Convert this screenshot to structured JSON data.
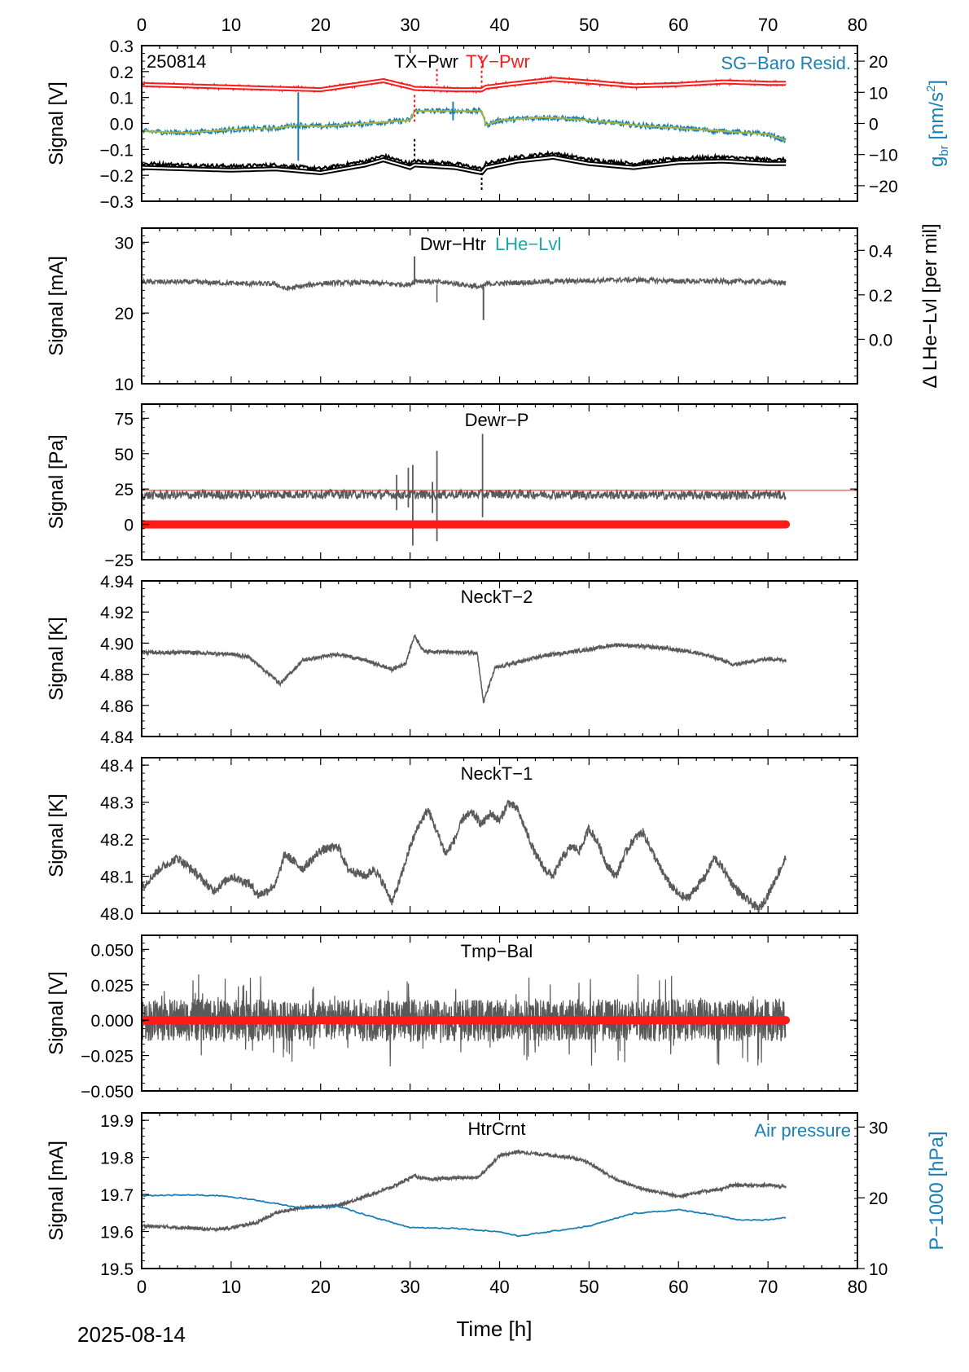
{
  "chart_data": {
    "type": "line",
    "date_label": "2025-08-14",
    "xlabel": "Time [h]",
    "xlim": [
      0,
      80
    ],
    "x_ticks": [
      "0",
      "10",
      "20",
      "30",
      "40",
      "50",
      "60",
      "70",
      "80"
    ],
    "colors": {
      "gray": "#5a5a5a",
      "red": "#ff1a1a",
      "blue": "#1a7fb5",
      "black": "#000000",
      "teal": "#1aa6a6",
      "olive": "#a8b23a"
    },
    "panels": [
      {
        "title": "TX−Pwr",
        "title2": "TY−Pwr",
        "corner_label": "250814",
        "right_label": "SG−Baro Resid.",
        "ylabel": "Signal [V]",
        "ylim": [
          -0.3,
          0.3
        ],
        "y_ticks": [
          "−0.3",
          "−0.2",
          "−0.1",
          "0.0",
          "0.1",
          "0.2",
          "0.3"
        ],
        "y2label": "g",
        "y2label_sub": "br",
        "y2label_unit": "[nm/s",
        "y2label_sup": "2",
        "y2label_end": "]",
        "y2lim": [
          -25,
          25
        ],
        "y2_ticks": [
          "−20",
          "−10",
          "0",
          "10",
          "20"
        ],
        "series": [
          {
            "x": [
              0,
              5,
              10,
              15,
              20,
              25,
              27,
              30,
              30.5,
              35,
              38,
              38.5,
              42,
              46,
              50,
              55,
              60,
              65,
              70,
              72
            ],
            "y": [
              0.15,
              0.145,
              0.14,
              0.135,
              0.13,
              0.155,
              0.165,
              0.14,
              0.135,
              0.13,
              0.13,
              0.14,
              0.155,
              0.17,
              0.16,
              0.145,
              0.15,
              0.16,
              0.155,
              0.155
            ]
          },
          {
            "x": [
              0,
              5,
              10,
              15,
              20,
              25,
              27,
              30,
              30.5,
              35,
              38,
              38.5,
              42,
              46,
              50,
              55,
              60,
              65,
              70,
              72
            ],
            "y": [
              -0.155,
              -0.16,
              -0.165,
              -0.16,
              -0.175,
              -0.145,
              -0.125,
              -0.155,
              -0.145,
              -0.155,
              -0.175,
              -0.155,
              -0.13,
              -0.115,
              -0.14,
              -0.155,
              -0.135,
              -0.13,
              -0.14,
              -0.14
            ]
          },
          {
            "x": [
              0,
              5,
              10,
              15,
              17.5,
              20,
              25,
              30,
              30.5,
              35,
              38,
              38.5,
              40,
              45,
              50,
              55,
              60,
              65,
              70,
              72
            ],
            "y": [
              -2.5,
              -3,
              -2,
              -1.5,
              -0.5,
              -1,
              0,
              1,
              4,
              4,
              4,
              -0.5,
              1,
              2,
              1,
              -0.5,
              -1.5,
              -2.5,
              -3.5,
              -5.5
            ]
          }
        ]
      },
      {
        "title": "Dwr−Htr",
        "title2": "LHe−Lvl",
        "ylabel": "Signal [mA]",
        "ylim": [
          10,
          32
        ],
        "y_ticks": [
          "10",
          "20",
          "30"
        ],
        "y2label": "Δ LHe−Lvl [per mil]",
        "y2lim": [
          -0.2,
          0.5
        ],
        "y2_ticks": [
          "0.0",
          "0.2",
          "0.4"
        ],
        "series": [
          {
            "x": [
              0,
              5,
              10,
              15,
              16,
              20,
              25,
              30,
              30.5,
              35,
              38,
              38.5,
              42,
              50,
              55,
              60,
              65,
              70,
              72
            ],
            "y": [
              24.4,
              24.4,
              24.2,
              24.1,
              23.4,
              24.2,
              24.3,
              24.0,
              24.6,
              24.2,
              23.6,
              24.1,
              24.3,
              24.6,
              24.7,
              24.5,
              24.5,
              24.4,
              24.2
            ]
          }
        ]
      },
      {
        "title": "Dewr−P",
        "ylabel": "Signal [Pa]",
        "ylim": [
          -25,
          85
        ],
        "y_ticks": [
          "−25",
          "0",
          "25",
          "50",
          "75"
        ],
        "ref_line": 24,
        "series": [
          {
            "x": [
              0,
              10,
              20,
              30,
              40,
              50,
              60,
              70,
              72
            ],
            "y": [
              20.5,
              21,
              21.5,
              21,
              21.5,
              21,
              20.5,
              21,
              20.5
            ]
          },
          {
            "x": [
              0,
              72
            ],
            "y": [
              0,
              0
            ]
          }
        ]
      },
      {
        "title": "NeckT−2",
        "ylabel": "Signal [K]",
        "ylim": [
          4.84,
          4.94
        ],
        "y_ticks": [
          "4.84",
          "4.86",
          "4.88",
          "4.90",
          "4.92",
          "4.94"
        ],
        "series": [
          {
            "x": [
              0,
              5,
              10,
              12,
              15.5,
              18,
              22,
              25,
              28,
              29.5,
              30.5,
              31.5,
              35,
              37.5,
              38.2,
              39.5,
              45,
              50,
              53,
              58,
              62,
              65,
              66,
              70,
              72
            ],
            "y": [
              4.894,
              4.894,
              4.893,
              4.891,
              4.874,
              4.889,
              4.893,
              4.889,
              4.883,
              4.887,
              4.905,
              4.895,
              4.894,
              4.894,
              4.862,
              4.884,
              4.892,
              4.896,
              4.899,
              4.897,
              4.894,
              4.889,
              4.886,
              4.89,
              4.889
            ]
          }
        ]
      },
      {
        "title": "NeckT−1",
        "ylabel": "Signal [K]",
        "ylim": [
          48.0,
          48.42
        ],
        "y_ticks": [
          "48.0",
          "48.1",
          "48.2",
          "48.3",
          "48.4"
        ],
        "series": [
          {
            "x": [
              0,
              2,
              4,
              6,
              8,
              10,
              12,
              13,
              14,
              15,
              16,
              18,
              20,
              22,
              23,
              25,
              26,
              27,
              28,
              29,
              30,
              31,
              32,
              33,
              34,
              35,
              36,
              37,
              38,
              39,
              40,
              41,
              42,
              43,
              44,
              45,
              46,
              47,
              48,
              49,
              50,
              51,
              52,
              53,
              54,
              55,
              56,
              57,
              58,
              59,
              60,
              61,
              62,
              63,
              64,
              65,
              66,
              67,
              68,
              69,
              70,
              71,
              72
            ],
            "y": [
              48.07,
              48.12,
              48.15,
              48.11,
              48.06,
              48.1,
              48.08,
              48.05,
              48.06,
              48.08,
              48.16,
              48.12,
              48.17,
              48.18,
              48.12,
              48.1,
              48.12,
              48.08,
              48.03,
              48.1,
              48.18,
              48.24,
              48.28,
              48.22,
              48.16,
              48.2,
              48.26,
              48.27,
              48.24,
              48.27,
              48.25,
              48.3,
              48.28,
              48.22,
              48.16,
              48.12,
              48.1,
              48.15,
              48.18,
              48.17,
              48.23,
              48.19,
              48.13,
              48.1,
              48.16,
              48.2,
              48.22,
              48.17,
              48.12,
              48.08,
              48.05,
              48.04,
              48.07,
              48.1,
              48.15,
              48.12,
              48.08,
              48.05,
              48.03,
              48.01,
              48.05,
              48.1,
              48.15
            ]
          }
        ]
      },
      {
        "title": "Tmp−Bal",
        "ylabel": "Signal [V]",
        "ylim": [
          -0.05,
          0.06
        ],
        "y_ticks": [
          "−0.050",
          "−0.025",
          "0.000",
          "0.025",
          "0.050"
        ],
        "series": [
          {
            "x": [
              0,
              72
            ],
            "y": [
              0.0,
              0.0
            ],
            "spread": 0.015
          },
          {
            "x": [
              0,
              72
            ],
            "y": [
              0,
              0
            ]
          }
        ]
      },
      {
        "title": "HtrCrnt",
        "right_label": "Air pressure",
        "ylabel": "Signal [mA]",
        "ylim": [
          19.5,
          19.92
        ],
        "y_ticks": [
          "19.5",
          "19.6",
          "19.7",
          "19.8",
          "19.9"
        ],
        "y2label": "P−1000 [hPa]",
        "y2lim": [
          10,
          32
        ],
        "y2_ticks": [
          "10",
          "20",
          "30"
        ],
        "series": [
          {
            "x": [
              0,
              5,
              8,
              10,
              13,
              15,
              18,
              22,
              25,
              28,
              30,
              30.5,
              32,
              35,
              37.5,
              38.2,
              40,
              42,
              44,
              48,
              50,
              53,
              56,
              60,
              62,
              65,
              66,
              70,
              72
            ],
            "y": [
              19.615,
              19.61,
              19.605,
              19.61,
              19.625,
              19.65,
              19.665,
              19.67,
              19.695,
              19.72,
              19.745,
              19.75,
              19.74,
              19.745,
              19.745,
              19.76,
              19.805,
              19.815,
              19.81,
              19.8,
              19.785,
              19.74,
              19.715,
              19.695,
              19.705,
              19.715,
              19.725,
              19.725,
              19.72
            ]
          },
          {
            "x": [
              0,
              5,
              9,
              12,
              15,
              18,
              22,
              25,
              28,
              30,
              35,
              40,
              42,
              45,
              50,
              55,
              60,
              64,
              67,
              70,
              72
            ],
            "y": [
              20.3,
              20.4,
              20.3,
              19.8,
              19.2,
              18.5,
              18.8,
              17.6,
              16.5,
              15.8,
              15.7,
              15.2,
              14.6,
              15.1,
              16.0,
              17.8,
              18.3,
              17.6,
              16.8,
              16.9,
              17.2
            ]
          }
        ]
      }
    ]
  }
}
